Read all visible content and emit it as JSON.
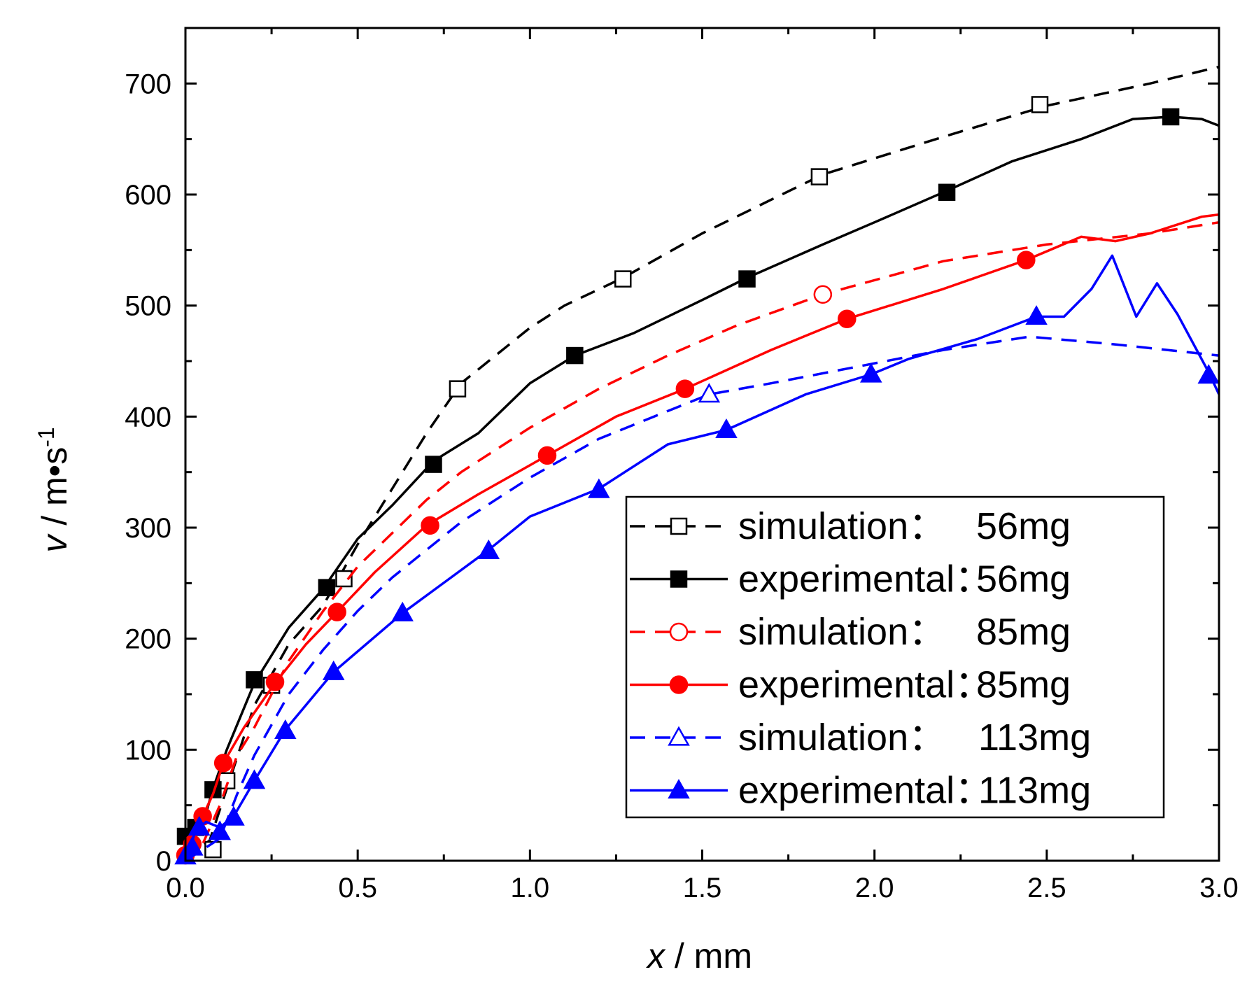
{
  "chart_data": {
    "type": "line",
    "xlabel": {
      "var": "x",
      "unit": " / mm"
    },
    "ylabel": {
      "var": "v",
      "unit": "  / m•s",
      "sup": "-1"
    },
    "xlim": [
      0,
      3.0
    ],
    "ylim": [
      0,
      750
    ],
    "xticks": [
      0.0,
      0.5,
      1.0,
      1.5,
      2.0,
      2.5,
      3.0
    ],
    "xtick_labels": [
      "0.0",
      "0.5",
      "1.0",
      "1.5",
      "2.0",
      "2.5",
      "3.0"
    ],
    "yticks": [
      0,
      100,
      200,
      300,
      400,
      500,
      600,
      700
    ],
    "ytick_labels": [
      "0",
      "100",
      "200",
      "300",
      "400",
      "500",
      "600",
      "700"
    ],
    "legend_position": "lower-right",
    "series": [
      {
        "id": "sim56",
        "name": "simulation：56mg",
        "label_left": "simulation：",
        "label_right": "56mg",
        "color": "#000000",
        "dash": true,
        "marker": "square",
        "filled": false,
        "x": [
          0,
          0.03,
          0.07,
          0.12,
          0.2,
          0.3,
          0.4,
          0.5,
          0.6,
          0.7,
          0.8,
          0.9,
          1.0,
          1.1,
          1.27,
          1.5,
          1.85,
          2.2,
          2.5,
          2.8,
          3.0
        ],
        "y": [
          0,
          10,
          18,
          65,
          140,
          195,
          230,
          285,
          335,
          385,
          430,
          455,
          480,
          500,
          525,
          565,
          618,
          652,
          680,
          700,
          715
        ],
        "markers_x": [
          0.08,
          0.12,
          0.25,
          0.46,
          0.79,
          1.27,
          1.84,
          2.48
        ],
        "markers_y": [
          10,
          72,
          158,
          254,
          425,
          524,
          616,
          681
        ]
      },
      {
        "id": "exp56",
        "name": "experimental：56mg",
        "label_left": "experimental：",
        "label_right": "56mg",
        "color": "#000000",
        "dash": false,
        "marker": "square",
        "filled": true,
        "x": [
          0,
          0.02,
          0.05,
          0.08,
          0.12,
          0.2,
          0.3,
          0.4,
          0.5,
          0.6,
          0.72,
          0.85,
          1.0,
          1.13,
          1.3,
          1.5,
          1.63,
          1.85,
          2.0,
          2.2,
          2.4,
          2.6,
          2.75,
          2.86,
          2.95,
          3.0
        ],
        "y": [
          0,
          20,
          32,
          65,
          100,
          160,
          210,
          245,
          290,
          320,
          360,
          385,
          430,
          455,
          475,
          505,
          525,
          555,
          575,
          602,
          630,
          650,
          668,
          670,
          668,
          662
        ],
        "markers_x": [
          0.0,
          0.03,
          0.08,
          0.2,
          0.41,
          0.72,
          1.13,
          1.63,
          2.21,
          2.86
        ],
        "markers_y": [
          22,
          30,
          64,
          163,
          246,
          357,
          455,
          524,
          602,
          670
        ]
      },
      {
        "id": "sim85",
        "name": "simulation：85mg",
        "label_left": "simulation：",
        "label_right": "85mg",
        "color": "#ff0000",
        "dash": true,
        "marker": "circle",
        "filled": false,
        "x": [
          0,
          0.05,
          0.1,
          0.15,
          0.2,
          0.3,
          0.4,
          0.5,
          0.6,
          0.7,
          0.8,
          1.0,
          1.2,
          1.4,
          1.6,
          1.85,
          2.2,
          2.5,
          2.8,
          3.0
        ],
        "y": [
          0,
          15,
          50,
          95,
          120,
          180,
          225,
          265,
          295,
          325,
          350,
          390,
          425,
          455,
          482,
          510,
          540,
          555,
          565,
          575
        ],
        "markers_x": [
          1.85
        ],
        "markers_y": [
          510
        ]
      },
      {
        "id": "exp85",
        "name": "experimental：85mg",
        "label_left": "experimental：",
        "label_right": "85mg",
        "color": "#ff0000",
        "dash": false,
        "marker": "circle",
        "filled": true,
        "x": [
          0,
          0.02,
          0.05,
          0.08,
          0.11,
          0.17,
          0.26,
          0.35,
          0.44,
          0.55,
          0.7,
          0.85,
          1.05,
          1.25,
          1.45,
          1.7,
          1.92,
          2.2,
          2.44,
          2.6,
          2.7,
          2.8,
          2.95,
          3.0
        ],
        "y": [
          0,
          15,
          40,
          60,
          88,
          120,
          160,
          195,
          224,
          260,
          302,
          330,
          365,
          400,
          425,
          460,
          488,
          515,
          541,
          562,
          558,
          565,
          580,
          582
        ],
        "markers_x": [
          0.0,
          0.02,
          0.05,
          0.11,
          0.26,
          0.44,
          0.71,
          1.05,
          1.45,
          1.92,
          2.44
        ],
        "markers_y": [
          5,
          15,
          40,
          88,
          161,
          224,
          302,
          365,
          425,
          488,
          541
        ]
      },
      {
        "id": "sim113",
        "name": "simulation：113mg",
        "label_left": "simulation：",
        "label_right": "113mg",
        "color": "#0000ff",
        "dash": true,
        "marker": "triangle",
        "filled": false,
        "x": [
          0,
          0.1,
          0.15,
          0.2,
          0.3,
          0.4,
          0.5,
          0.6,
          0.7,
          0.8,
          1.0,
          1.2,
          1.4,
          1.52,
          1.7,
          2.0,
          2.2,
          2.45,
          2.7,
          3.0
        ],
        "y": [
          0,
          20,
          60,
          95,
          150,
          190,
          225,
          255,
          280,
          305,
          345,
          380,
          405,
          420,
          430,
          448,
          460,
          472,
          465,
          455
        ],
        "markers_x": [
          1.52
        ],
        "markers_y": [
          420
        ]
      },
      {
        "id": "exp113",
        "name": "experimental：113mg",
        "label_left": "experimental：",
        "label_right": "113mg",
        "color": "#0000ff",
        "dash": false,
        "marker": "triangle",
        "filled": true,
        "x": [
          0,
          0.01,
          0.03,
          0.06,
          0.1,
          0.14,
          0.2,
          0.29,
          0.43,
          0.63,
          0.88,
          1.0,
          1.2,
          1.4,
          1.57,
          1.8,
          1.99,
          2.1,
          2.3,
          2.47,
          2.55,
          2.63,
          2.69,
          2.76,
          2.82,
          2.88,
          2.97,
          3.0
        ],
        "y": [
          0,
          8,
          28,
          35,
          30,
          40,
          72,
          118,
          170,
          223,
          280,
          310,
          335,
          375,
          388,
          420,
          438,
          452,
          470,
          490,
          490,
          515,
          545,
          490,
          520,
          492,
          440,
          420
        ],
        "markers_x": [
          0.0,
          0.02,
          0.04,
          0.1,
          0.14,
          0.2,
          0.29,
          0.43,
          0.63,
          0.88,
          1.2,
          1.57,
          1.99,
          2.47,
          2.97
        ],
        "markers_y": [
          4,
          12,
          30,
          26,
          39,
          72,
          117,
          170,
          223,
          279,
          334,
          388,
          438,
          490,
          437
        ]
      }
    ]
  }
}
